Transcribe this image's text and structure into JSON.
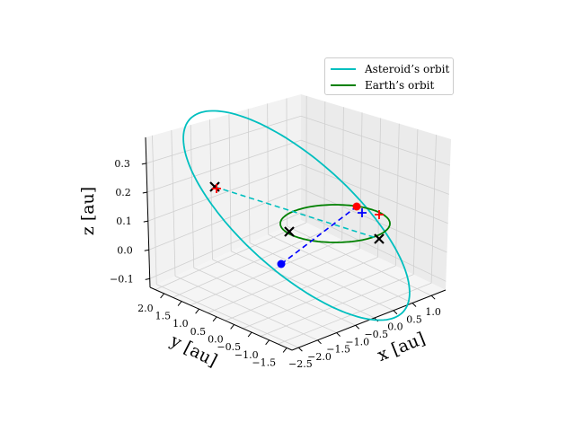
{
  "chart_data": {
    "type": "line",
    "projection": "3d",
    "xlabel": "x [au]",
    "ylabel": "y [au]",
    "zlabel": "z [au]",
    "x_ticks": [
      "−2.5",
      "−2.0",
      "−1.5",
      "−1.0",
      "−0.5",
      "0.0",
      "0.5",
      "1.0"
    ],
    "y_ticks": [
      "−1.5",
      "−1.0",
      "−0.5",
      "0.0",
      "0.5",
      "1.0",
      "1.5",
      "2.0"
    ],
    "z_ticks": [
      "−0.1",
      "0.0",
      "0.1",
      "0.2",
      "0.3"
    ],
    "grid": true,
    "legend_position": "top-right",
    "series": [
      {
        "name": "Asteroid’s orbit",
        "color": "#00bfbf",
        "style": "solid"
      },
      {
        "name": "Earth’s orbit",
        "color": "#008000",
        "style": "solid"
      }
    ],
    "markers": {
      "asteroid_position_color": "#0000ff",
      "earth_position_color": "#ff0000",
      "node_marker_color": "#000000",
      "node_plus_color": "#ff0000"
    }
  },
  "legend": {
    "items": [
      {
        "label": "Asteroid’s orbit",
        "color": "#00bfbf"
      },
      {
        "label": "Earth’s orbit",
        "color": "#008000"
      }
    ]
  }
}
